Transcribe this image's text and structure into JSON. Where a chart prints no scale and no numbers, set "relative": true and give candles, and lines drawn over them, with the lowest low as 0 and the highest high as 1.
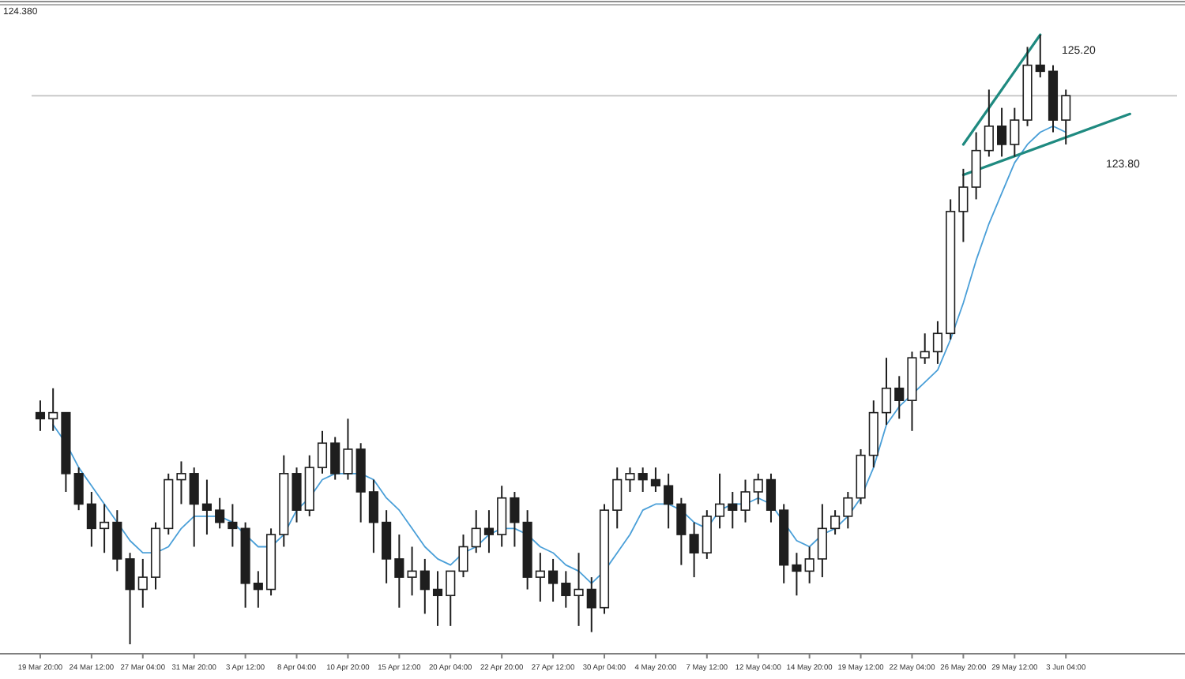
{
  "chart_data": {
    "type": "candlestick",
    "relative": true,
    "tick_labels": "x",
    "color": "#1e1e1e",
    "categories": [
      "19 Mar 20:00",
      null,
      null,
      null,
      "24 Mar 12:00",
      null,
      null,
      null,
      "27 Mar 04:00",
      null,
      null,
      null,
      "31 Mar 20:00",
      null,
      null,
      null,
      "3 Apr 12:00",
      null,
      null,
      null,
      "8 Apr 04:00",
      null,
      null,
      null,
      "10 Apr 20:00",
      null,
      null,
      null,
      "15 Apr 12:00",
      null,
      null,
      null,
      "20 Apr 04:00",
      null,
      null,
      null,
      "22 Apr 20:00",
      null,
      null,
      null,
      "27 Apr 12:00",
      null,
      null,
      null,
      "30 Apr 04:00",
      null,
      null,
      null,
      "4 May 20:00",
      null,
      null,
      null,
      "7 May 12:00",
      null,
      null,
      null,
      "12 May 04:00",
      null,
      null,
      null,
      "14 May 20:00",
      null,
      null,
      null,
      "19 May 12:00",
      null,
      null,
      null,
      "22 May 04:00",
      null,
      null,
      null,
      "26 May 20:00",
      null,
      null,
      null,
      "29 May 12:00",
      null,
      null,
      null,
      "3 Jun 04:00",
      null,
      null,
      null,
      null,
      null,
      null,
      null,
      null
    ],
    "ohlc": [
      [
        0.38,
        0.4,
        0.35,
        0.37
      ],
      [
        0.37,
        0.42,
        0.35,
        0.38
      ],
      [
        0.38,
        0.38,
        0.25,
        0.28
      ],
      [
        0.28,
        0.29,
        0.22,
        0.23
      ],
      [
        0.23,
        0.25,
        0.16,
        0.19
      ],
      [
        0.19,
        0.23,
        0.15,
        0.2
      ],
      [
        0.2,
        0.22,
        0.12,
        0.14
      ],
      [
        0.14,
        0.15,
        0,
        0.09
      ],
      [
        0.09,
        0.14,
        0.06,
        0.11
      ],
      [
        0.11,
        0.2,
        0.09,
        0.19
      ],
      [
        0.19,
        0.28,
        0.18,
        0.27
      ],
      [
        0.27,
        0.3,
        0.23,
        0.28
      ],
      [
        0.28,
        0.29,
        0.16,
        0.23
      ],
      [
        0.23,
        0.27,
        0.18,
        0.22
      ],
      [
        0.22,
        0.24,
        0.19,
        0.2
      ],
      [
        0.2,
        0.23,
        0.16,
        0.19
      ],
      [
        0.19,
        0.2,
        0.06,
        0.1
      ],
      [
        0.1,
        0.12,
        0.06,
        0.09
      ],
      [
        0.09,
        0.19,
        0.08,
        0.18
      ],
      [
        0.18,
        0.31,
        0.16,
        0.28
      ],
      [
        0.28,
        0.29,
        0.2,
        0.22
      ],
      [
        0.22,
        0.31,
        0.21,
        0.29
      ],
      [
        0.29,
        0.35,
        0.28,
        0.33
      ],
      [
        0.33,
        0.34,
        0.27,
        0.28
      ],
      [
        0.28,
        0.37,
        0.27,
        0.32
      ],
      [
        0.32,
        0.33,
        0.2,
        0.25
      ],
      [
        0.25,
        0.27,
        0.15,
        0.2
      ],
      [
        0.2,
        0.22,
        0.1,
        0.14
      ],
      [
        0.14,
        0.18,
        0.06,
        0.11
      ],
      [
        0.11,
        0.16,
        0.08,
        0.12
      ],
      [
        0.12,
        0.14,
        0.05,
        0.09
      ],
      [
        0.09,
        0.12,
        0.03,
        0.08
      ],
      [
        0.08,
        0.12,
        0.03,
        0.12
      ],
      [
        0.12,
        0.18,
        0.11,
        0.16
      ],
      [
        0.16,
        0.22,
        0.15,
        0.19
      ],
      [
        0.19,
        0.22,
        0.15,
        0.18
      ],
      [
        0.18,
        0.26,
        0.16,
        0.24
      ],
      [
        0.24,
        0.25,
        0.16,
        0.2
      ],
      [
        0.2,
        0.22,
        0.09,
        0.11
      ],
      [
        0.11,
        0.15,
        0.07,
        0.12
      ],
      [
        0.12,
        0.14,
        0.07,
        0.1
      ],
      [
        0.1,
        0.12,
        0.06,
        0.08
      ],
      [
        0.08,
        0.15,
        0.03,
        0.09
      ],
      [
        0.09,
        0.11,
        0.02,
        0.06
      ],
      [
        0.06,
        0.23,
        0.05,
        0.22
      ],
      [
        0.22,
        0.29,
        0.19,
        0.27
      ],
      [
        0.27,
        0.29,
        0.25,
        0.28
      ],
      [
        0.28,
        0.29,
        0.25,
        0.27
      ],
      [
        0.27,
        0.29,
        0.25,
        0.26
      ],
      [
        0.26,
        0.28,
        0.19,
        0.23
      ],
      [
        0.23,
        0.24,
        0.13,
        0.18
      ],
      [
        0.18,
        0.2,
        0.11,
        0.15
      ],
      [
        0.15,
        0.22,
        0.14,
        0.21
      ],
      [
        0.21,
        0.28,
        0.19,
        0.23
      ],
      [
        0.23,
        0.25,
        0.19,
        0.22
      ],
      [
        0.22,
        0.27,
        0.2,
        0.25
      ],
      [
        0.25,
        0.28,
        0.23,
        0.27
      ],
      [
        0.27,
        0.28,
        0.2,
        0.22
      ],
      [
        0.22,
        0.23,
        0.1,
        0.13
      ],
      [
        0.13,
        0.15,
        0.08,
        0.12
      ],
      [
        0.12,
        0.16,
        0.1,
        0.14
      ],
      [
        0.14,
        0.23,
        0.11,
        0.19
      ],
      [
        0.19,
        0.22,
        0.18,
        0.21
      ],
      [
        0.21,
        0.25,
        0.19,
        0.24
      ],
      [
        0.24,
        0.32,
        0.23,
        0.31
      ],
      [
        0.31,
        0.4,
        0.29,
        0.38
      ],
      [
        0.38,
        0.47,
        0.36,
        0.42
      ],
      [
        0.42,
        0.44,
        0.37,
        0.4
      ],
      [
        0.4,
        0.48,
        0.35,
        0.47
      ],
      [
        0.47,
        0.51,
        0.46,
        0.48
      ],
      [
        0.48,
        0.53,
        0.46,
        0.51
      ],
      [
        0.51,
        0.73,
        0.5,
        0.71
      ],
      [
        0.71,
        0.78,
        0.66,
        0.75
      ],
      [
        0.75,
        0.84,
        0.73,
        0.81
      ],
      [
        0.81,
        0.91,
        0.8,
        0.85
      ],
      [
        0.85,
        0.88,
        0.8,
        0.82
      ],
      [
        0.82,
        0.88,
        0.8,
        0.86
      ],
      [
        0.86,
        0.98,
        0.85,
        0.95
      ],
      [
        0.95,
        1,
        0.93,
        0.94
      ],
      [
        0.94,
        0.95,
        0.84,
        0.86
      ],
      [
        0.86,
        0.91,
        0.82,
        0.9
      ],
      null,
      null,
      null,
      null,
      null,
      null,
      null,
      null
    ],
    "series": [
      {
        "type": "line",
        "color": "#4a9fd8",
        "values": [
          null,
          0.36,
          0.33,
          0.29,
          0.26,
          0.23,
          0.2,
          0.17,
          0.15,
          0.15,
          0.16,
          0.19,
          0.21,
          0.21,
          0.21,
          0.2,
          0.18,
          0.16,
          0.16,
          0.18,
          0.22,
          0.24,
          0.27,
          0.28,
          0.28,
          0.28,
          0.27,
          0.24,
          0.22,
          0.19,
          0.16,
          0.14,
          0.13,
          0.15,
          0.16,
          0.18,
          0.19,
          0.19,
          0.18,
          0.16,
          0.15,
          0.13,
          0.12,
          0.1,
          0.12,
          0.15,
          0.18,
          0.22,
          0.23,
          0.23,
          0.22,
          0.2,
          0.19,
          0.22,
          0.23,
          0.23,
          0.24,
          0.23,
          0.2,
          0.17,
          0.16,
          0.18,
          0.19,
          0.21,
          0.24,
          0.29,
          0.36,
          0.39,
          0.41,
          0.43,
          0.45,
          0.5,
          0.56,
          0.63,
          0.69,
          0.74,
          0.79,
          0.82,
          0.84,
          0.85,
          0.84,
          null,
          null,
          null,
          null,
          null,
          null,
          null,
          null
        ]
      },
      {
        "type": "line",
        "color": "#1f8a80",
        "values": [
          null,
          null,
          null,
          null,
          null,
          null,
          null,
          null,
          null,
          null,
          null,
          null,
          null,
          null,
          null,
          null,
          null,
          null,
          null,
          null,
          null,
          null,
          null,
          null,
          null,
          null,
          null,
          null,
          null,
          null,
          null,
          null,
          null,
          null,
          null,
          null,
          null,
          null,
          null,
          null,
          null,
          null,
          null,
          null,
          null,
          null,
          null,
          null,
          null,
          null,
          null,
          null,
          null,
          null,
          null,
          null,
          null,
          null,
          null,
          null,
          null,
          null,
          null,
          null,
          null,
          null,
          null,
          null,
          null,
          null,
          null,
          null,
          0.82,
          null,
          null,
          null,
          null,
          null,
          1,
          null,
          null,
          null,
          null,
          null,
          null,
          null,
          null,
          null,
          null
        ]
      },
      {
        "type": "line",
        "color": "#1f8a80",
        "values": [
          null,
          null,
          null,
          null,
          null,
          null,
          null,
          null,
          null,
          null,
          null,
          null,
          null,
          null,
          null,
          null,
          null,
          null,
          null,
          null,
          null,
          null,
          null,
          null,
          null,
          null,
          null,
          null,
          null,
          null,
          null,
          null,
          null,
          null,
          null,
          null,
          null,
          null,
          null,
          null,
          null,
          null,
          null,
          null,
          null,
          null,
          null,
          null,
          null,
          null,
          null,
          null,
          null,
          null,
          null,
          null,
          null,
          null,
          null,
          null,
          null,
          null,
          null,
          null,
          null,
          null,
          null,
          null,
          null,
          null,
          null,
          null,
          0.77,
          null,
          null,
          null,
          null,
          null,
          null,
          null,
          null,
          null,
          null,
          null,
          null,
          0.87,
          null,
          null,
          null
        ]
      }
    ],
    "ref_lines": [
      {
        "axis": "y",
        "value": 0.9,
        "color": "#c8c8c8"
      }
    ],
    "annotations": [
      "124.380",
      "125.20",
      "123.80"
    ]
  }
}
